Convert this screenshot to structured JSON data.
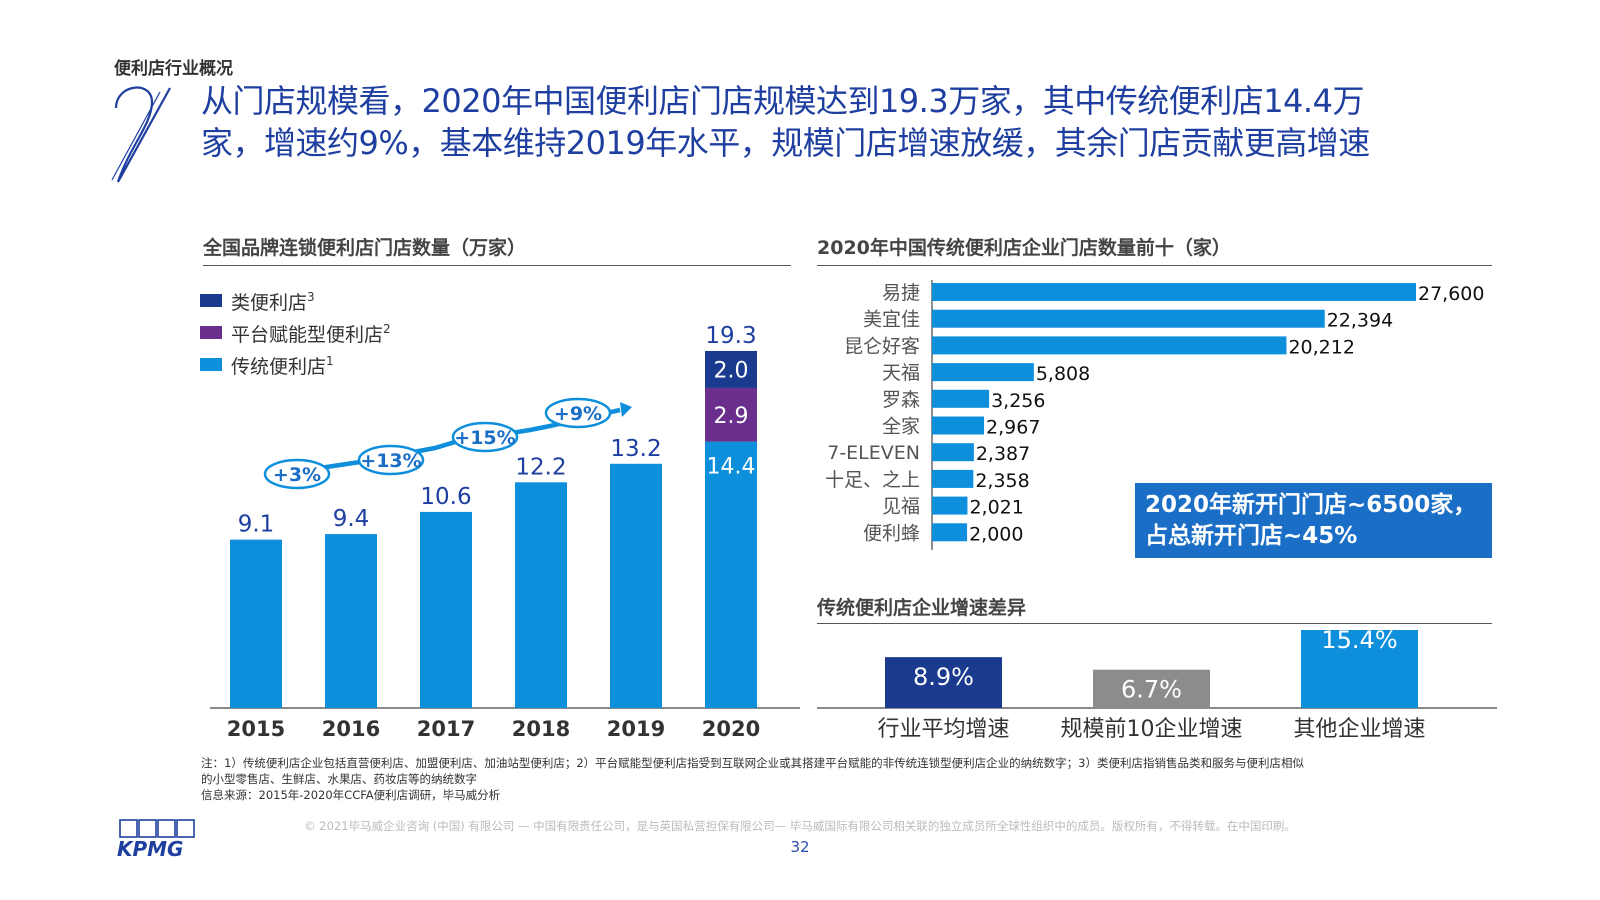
{
  "section_label": "便利店行业概况",
  "headline": [
    "从门店规模看，2020年中国便利店门店规模达到19.3万家，其中传统便利店14.4万",
    "家，增速约9%，基本维持2019年水平，规模门店增速放缓，其余门店贡献更高增速"
  ],
  "colors": {
    "dark_blue": "#1a3a8f",
    "purple": "#6a2e8c",
    "light_blue": "#0d8fdc",
    "gray": "#8c8c8c",
    "headline": "#1e3fa0"
  },
  "chart_data": [
    {
      "type": "bar",
      "title": "全国品牌连锁便利店门店数量（万家）",
      "legend": [
        {
          "label": "类便利店",
          "sup": "3",
          "color": "#1a3a8f"
        },
        {
          "label": "平台赋能型便利店",
          "sup": "2",
          "color": "#6a2e8c"
        },
        {
          "label": "传统便利店",
          "sup": "1",
          "color": "#0d8fdc"
        }
      ],
      "categories": [
        "2015",
        "2016",
        "2017",
        "2018",
        "2019",
        "2020"
      ],
      "totals": [
        "9.1",
        "9.4",
        "10.6",
        "12.2",
        "13.2",
        "19.3"
      ],
      "series": [
        {
          "name": "传统便利店",
          "values": [
            9.1,
            9.4,
            10.6,
            12.2,
            13.2,
            14.4
          ]
        },
        {
          "name": "平台赋能型便利店",
          "values": [
            0,
            0,
            0,
            0,
            0,
            2.9
          ]
        },
        {
          "name": "类便利店",
          "values": [
            0,
            0,
            0,
            0,
            0,
            2.0
          ]
        }
      ],
      "segment_labels_2020": [
        "14.4",
        "2.9",
        "2.0"
      ],
      "growth_labels": [
        "+3%",
        "+13%",
        "+15%",
        "+9%"
      ],
      "ylim": [
        0,
        20
      ]
    },
    {
      "type": "bar",
      "orientation": "horizontal",
      "title": "2020年中国传统便利店企业门店数量前十（家）",
      "categories": [
        "易捷",
        "美宜佳",
        "昆仑好客",
        "天福",
        "罗森",
        "全家",
        "7-ELEVEN",
        "十足、之上",
        "见福",
        "便利蜂"
      ],
      "values": [
        27600,
        22394,
        20212,
        5808,
        3256,
        2967,
        2387,
        2358,
        2021,
        2000
      ],
      "value_labels": [
        "27,600",
        "22,394",
        "20,212",
        "5,808",
        "3,256",
        "2,967",
        "2,387",
        "2,358",
        "2,021",
        "2,000"
      ],
      "callout": [
        "2020年新开门门店~6500家，",
        "占总新开门店~45%"
      ]
    },
    {
      "type": "bar",
      "title": "传统便利店企业增速差异",
      "categories": [
        "行业平均增速",
        "规模前10企业增速",
        "其他企业增速"
      ],
      "values": [
        8.9,
        6.7,
        15.4
      ],
      "value_labels": [
        "8.9%",
        "6.7%",
        "15.4%"
      ],
      "colors": [
        "#1a3a8f",
        "#8c8c8c",
        "#0d8fdc"
      ]
    }
  ],
  "notes": [
    "注：1）传统便利店企业包括直营便利店、加盟便利店、加油站型便利店；2）平台赋能型便利店指受到互联网企业或其搭建平台赋能的非传统连锁型便利店企业的纳统数字；3）类便利店指销售品类和服务与便利店相似",
    "的小型零售店、生鲜店、水果店、药妆店等的纳统数字",
    "信息来源：2015年-2020年CCFA便利店调研，毕马威分析"
  ],
  "copyright": "© 2021毕马威企业咨询 (中国) 有限公司 — 中国有限责任公司，是与英国私营担保有限公司— 毕马威国际有限公司相关联的独立成员所全球性组织中的成员。版权所有，不得转载。在中国印刷。",
  "page_number": "32",
  "logo_text": "KPMG"
}
